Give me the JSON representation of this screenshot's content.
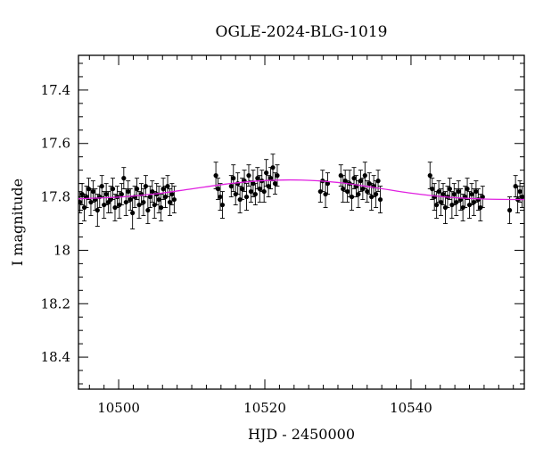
{
  "chart_data": {
    "type": "scatter",
    "title": "OGLE-2024-BLG-1019",
    "xlabel": "HJD - 2450000",
    "ylabel": "I magnitude",
    "xlim": [
      10494.5,
      10555.5
    ],
    "ylim": [
      18.52,
      17.27
    ],
    "y_inverted": true,
    "x_ticks": [
      10500,
      10520,
      10540
    ],
    "x_tick_labels": [
      "10500",
      "10520",
      "10540"
    ],
    "y_ticks": [
      17.4,
      17.6,
      17.8,
      18,
      18.2,
      18.4
    ],
    "y_tick_labels": [
      "17.4",
      "17.6",
      "17.8",
      "18",
      "18.2",
      "18.4"
    ],
    "grid": false,
    "legend": "none",
    "colors": {
      "points": "#000000",
      "model": "#e020e0",
      "frame": "#000000"
    },
    "model_curve": {
      "x": [
        10494.5,
        10500,
        10505,
        10510,
        10515,
        10520,
        10525,
        10530,
        10535,
        10540,
        10545,
        10550,
        10555.5
      ],
      "y": [
        17.807,
        17.801,
        17.789,
        17.77,
        17.751,
        17.739,
        17.737,
        17.746,
        17.765,
        17.786,
        17.801,
        17.808,
        17.81
      ]
    },
    "series": [
      {
        "x": [
          10494.7,
          10495.0,
          10495.3,
          10495.6,
          10495.9,
          10496.2,
          10496.5,
          10496.8,
          10497.1,
          10497.4,
          10497.7,
          10498.0,
          10498.3,
          10498.6,
          10498.9,
          10499.2,
          10499.5,
          10499.8,
          10500.1,
          10500.4,
          10500.7,
          10501.0,
          10501.3,
          10501.6,
          10501.9,
          10502.2,
          10502.5,
          10502.8,
          10503.1,
          10503.4,
          10503.7,
          10504.0,
          10504.3,
          10504.6,
          10504.9,
          10505.2,
          10505.5,
          10505.8,
          10506.1,
          10506.4,
          10506.7,
          10507.0,
          10507.3,
          10507.6,
          10513.3,
          10513.6,
          10513.9,
          10514.2,
          10515.4,
          10515.7,
          10516.0,
          10516.3,
          10516.6,
          10516.9,
          10517.2,
          10517.5,
          10517.8,
          10518.1,
          10518.4,
          10518.7,
          10519.0,
          10519.3,
          10519.6,
          10519.9,
          10520.2,
          10520.5,
          10520.8,
          10521.1,
          10521.4,
          10521.7,
          10527.6,
          10527.9,
          10528.3,
          10528.6,
          10530.4,
          10530.7,
          10531.0,
          10531.3,
          10531.6,
          10531.9,
          10532.2,
          10532.5,
          10532.8,
          10533.1,
          10533.4,
          10533.7,
          10534.0,
          10534.3,
          10534.6,
          10534.9,
          10535.2,
          10535.5,
          10535.8,
          10542.6,
          10542.9,
          10543.2,
          10543.5,
          10543.8,
          10544.1,
          10544.4,
          10544.7,
          10545.0,
          10545.3,
          10545.6,
          10545.9,
          10546.2,
          10546.5,
          10546.8,
          10547.1,
          10547.4,
          10547.7,
          10548.0,
          10548.3,
          10548.6,
          10548.9,
          10549.2,
          10549.5,
          10549.8,
          10553.5,
          10554.3,
          10554.6,
          10554.9,
          10555.2
        ],
        "y": [
          17.82,
          17.79,
          17.84,
          17.8,
          17.77,
          17.82,
          17.78,
          17.81,
          17.85,
          17.8,
          17.76,
          17.83,
          17.79,
          17.82,
          17.81,
          17.77,
          17.84,
          17.8,
          17.83,
          17.79,
          17.73,
          17.82,
          17.78,
          17.81,
          17.86,
          17.8,
          17.77,
          17.83,
          17.79,
          17.82,
          17.76,
          17.85,
          17.8,
          17.78,
          17.83,
          17.79,
          17.81,
          17.84,
          17.77,
          17.8,
          17.76,
          17.82,
          17.79,
          17.81,
          17.72,
          17.77,
          17.8,
          17.83,
          17.76,
          17.73,
          17.79,
          17.75,
          17.81,
          17.77,
          17.74,
          17.8,
          17.72,
          17.78,
          17.75,
          17.79,
          17.73,
          17.77,
          17.74,
          17.78,
          17.71,
          17.76,
          17.73,
          17.69,
          17.75,
          17.72,
          17.78,
          17.74,
          17.79,
          17.75,
          17.72,
          17.77,
          17.74,
          17.78,
          17.75,
          17.8,
          17.73,
          17.76,
          17.79,
          17.74,
          17.77,
          17.72,
          17.78,
          17.75,
          17.8,
          17.76,
          17.79,
          17.74,
          17.81,
          17.72,
          17.77,
          17.8,
          17.83,
          17.78,
          17.82,
          17.79,
          17.84,
          17.8,
          17.77,
          17.83,
          17.79,
          17.82,
          17.78,
          17.81,
          17.84,
          17.8,
          17.77,
          17.83,
          17.79,
          17.82,
          17.78,
          17.81,
          17.84,
          17.8,
          17.85,
          17.76,
          17.81,
          17.78,
          17.8
        ],
        "err": [
          0.04,
          0.04,
          0.05,
          0.04,
          0.04,
          0.05,
          0.04,
          0.04,
          0.06,
          0.04,
          0.04,
          0.05,
          0.04,
          0.04,
          0.05,
          0.04,
          0.05,
          0.04,
          0.05,
          0.04,
          0.04,
          0.05,
          0.04,
          0.04,
          0.06,
          0.04,
          0.04,
          0.05,
          0.04,
          0.05,
          0.04,
          0.05,
          0.04,
          0.04,
          0.05,
          0.04,
          0.05,
          0.05,
          0.04,
          0.04,
          0.04,
          0.05,
          0.04,
          0.05,
          0.05,
          0.04,
          0.05,
          0.05,
          0.04,
          0.05,
          0.04,
          0.04,
          0.05,
          0.04,
          0.04,
          0.05,
          0.04,
          0.04,
          0.05,
          0.04,
          0.04,
          0.05,
          0.04,
          0.04,
          0.05,
          0.04,
          0.04,
          0.05,
          0.04,
          0.04,
          0.04,
          0.04,
          0.05,
          0.04,
          0.04,
          0.05,
          0.04,
          0.04,
          0.05,
          0.05,
          0.04,
          0.04,
          0.05,
          0.04,
          0.04,
          0.05,
          0.04,
          0.04,
          0.05,
          0.04,
          0.05,
          0.04,
          0.05,
          0.05,
          0.04,
          0.05,
          0.05,
          0.04,
          0.05,
          0.04,
          0.06,
          0.04,
          0.04,
          0.05,
          0.04,
          0.05,
          0.04,
          0.04,
          0.05,
          0.04,
          0.04,
          0.05,
          0.04,
          0.05,
          0.04,
          0.04,
          0.05,
          0.04,
          0.05,
          0.04,
          0.05,
          0.04,
          0.04
        ]
      }
    ]
  }
}
